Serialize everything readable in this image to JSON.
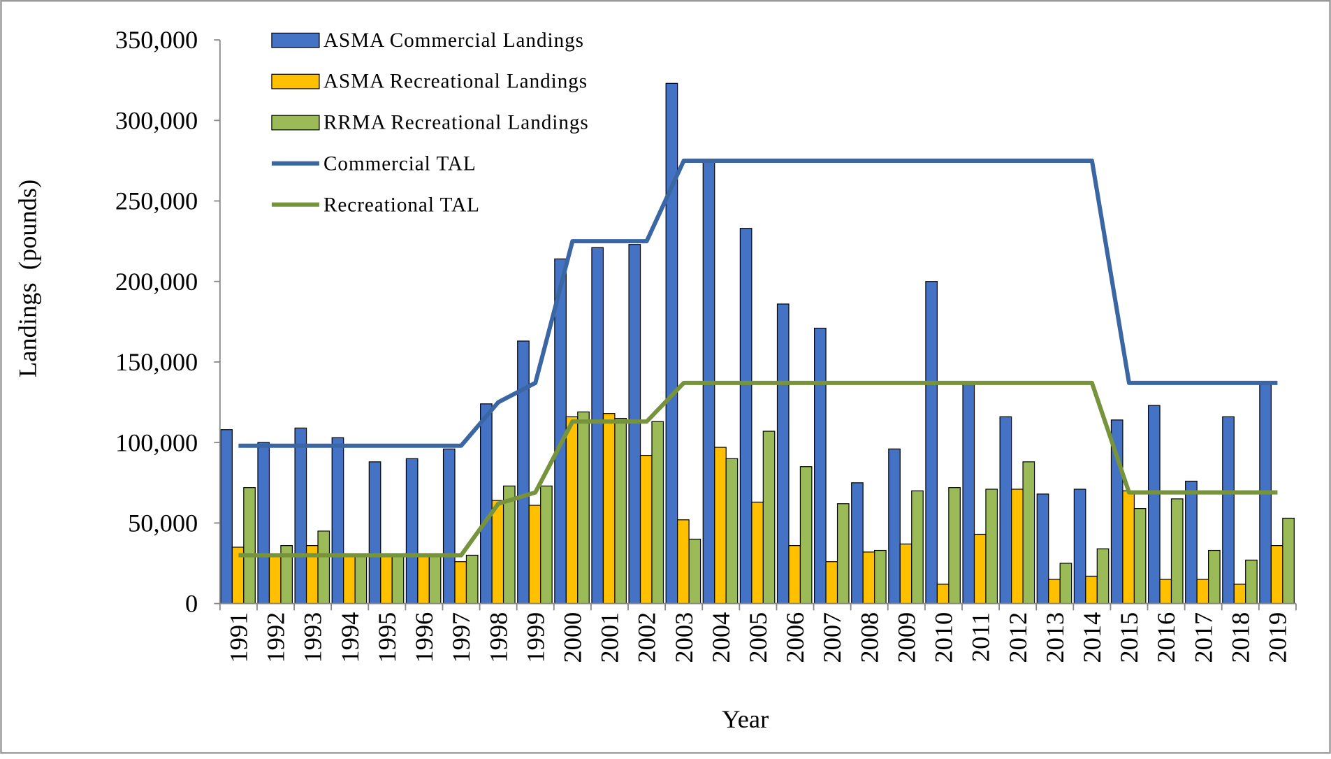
{
  "chart_data": {
    "type": "bar",
    "x_label": "Year",
    "y_label": "Landings  (pounds)",
    "categories": [
      "1991",
      "1992",
      "1993",
      "1994",
      "1995",
      "1996",
      "1997",
      "1998",
      "1999",
      "2000",
      "2001",
      "2002",
      "2003",
      "2004",
      "2005",
      "2006",
      "2007",
      "2008",
      "2009",
      "2010",
      "2011",
      "2012",
      "2013",
      "2014",
      "2015",
      "2016",
      "2017",
      "2018",
      "2019"
    ],
    "series": [
      {
        "name": "ASMA Commercial Landings",
        "type": "bar",
        "color": "#4472c4",
        "values": [
          108000,
          100000,
          109000,
          103000,
          88000,
          90000,
          96000,
          124000,
          163000,
          214000,
          221000,
          223000,
          323000,
          274000,
          233000,
          186000,
          171000,
          75000,
          96000,
          200000,
          138000,
          116000,
          68000,
          71000,
          114000,
          123000,
          76000,
          116000,
          138000
        ]
      },
      {
        "name": "ASMA Recreational Landings",
        "type": "bar",
        "color": "#ffc000",
        "values": [
          35000,
          30000,
          36000,
          30000,
          30000,
          30000,
          26000,
          64000,
          61000,
          116000,
          118000,
          92000,
          52000,
          97000,
          63000,
          36000,
          26000,
          32000,
          37000,
          12000,
          43000,
          71000,
          15000,
          17000,
          70000,
          15000,
          15000,
          12000,
          36000
        ]
      },
      {
        "name": "RRMA Recreational Landings",
        "type": "bar",
        "color": "#9bbb59",
        "values": [
          72000,
          36000,
          45000,
          30000,
          30000,
          30000,
          30000,
          73000,
          73000,
          119000,
          115000,
          113000,
          40000,
          90000,
          107000,
          85000,
          62000,
          33000,
          70000,
          72000,
          71000,
          88000,
          25000,
          34000,
          59000,
          65000,
          33000,
          27000,
          53000
        ]
      },
      {
        "name": "Commercial TAL",
        "type": "line",
        "color": "#3a67a3",
        "values": [
          98000,
          98000,
          98000,
          98000,
          98000,
          98000,
          98000,
          125000,
          137000,
          225000,
          225000,
          225000,
          275000,
          275000,
          275000,
          275000,
          275000,
          275000,
          275000,
          275000,
          275000,
          275000,
          275000,
          275000,
          137000,
          137000,
          137000,
          137000,
          137000
        ]
      },
      {
        "name": "Recreational TAL",
        "type": "line",
        "color": "#77933c",
        "values": [
          30000,
          30000,
          30000,
          30000,
          30000,
          30000,
          30000,
          62000,
          69000,
          113000,
          113000,
          113000,
          137000,
          137000,
          137000,
          137000,
          137000,
          137000,
          137000,
          137000,
          137000,
          137000,
          137000,
          137000,
          69000,
          69000,
          69000,
          69000,
          69000
        ]
      }
    ],
    "ylim": [
      0,
      350000
    ],
    "yticks": [
      0,
      {
        "value": 50000,
        "label": "50,000"
      },
      {
        "value": 100000,
        "label": "100,000"
      },
      {
        "value": 150000,
        "label": "150,000"
      },
      {
        "value": 200000,
        "label": "200,000"
      },
      {
        "value": 250000,
        "label": "250,000"
      },
      {
        "value": 300000,
        "label": "300,000"
      },
      {
        "value": 350000,
        "label": "350,000"
      }
    ],
    "legend": "top-left"
  }
}
